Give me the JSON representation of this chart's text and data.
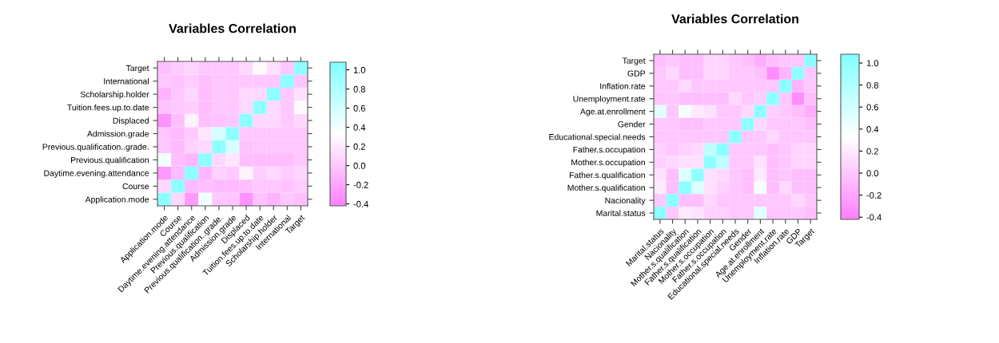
{
  "chart_data": [
    {
      "type": "heatmap",
      "title": "Variables Correlation",
      "categories": [
        "Application.mode",
        "Course",
        "Daytime.evening.attendance",
        "Previous.qualification",
        "Previous.qualification..grade.",
        "Admission.grade",
        "Displaced",
        "Tuition.fees.up.to.date",
        "Scholarship.holder",
        "International",
        "Target"
      ],
      "y_categories": [
        "Target",
        "International",
        "Scholarship.holder",
        "Tuition.fees.up.to.date",
        "Displaced",
        "Admission.grade",
        "Previous.qualification..grade.",
        "Previous.qualification",
        "Daytime.evening.attendance",
        "Course",
        "Application.mode"
      ],
      "cells": [
        [
          -0.05,
          0.03,
          0.08,
          0.0,
          0.0,
          0.0,
          0.1,
          0.3,
          0.15,
          0.0,
          1
        ],
        [
          0.0,
          -0.03,
          0.03,
          -0.06,
          0.0,
          0.0,
          0.0,
          0.0,
          0.0,
          1,
          0.0
        ],
        [
          -0.12,
          0.0,
          0.1,
          -0.06,
          0.0,
          0.0,
          0.1,
          0.1,
          1,
          0.0,
          0.15
        ],
        [
          -0.03,
          0.0,
          0.04,
          -0.06,
          0.0,
          0.0,
          0.1,
          1,
          0.1,
          0.0,
          0.3
        ],
        [
          -0.31,
          -0.05,
          0.25,
          -0.05,
          -0.03,
          0.0,
          1,
          0.1,
          0.1,
          0.0,
          0.1
        ],
        [
          -0.01,
          -0.08,
          0.01,
          0.18,
          0.58,
          1,
          0.0,
          0.0,
          0.0,
          0.0,
          0.0
        ],
        [
          0.0,
          -0.08,
          0.06,
          0.1,
          1,
          0.58,
          -0.03,
          0.0,
          0.0,
          0.0,
          0.0
        ],
        [
          0.42,
          -0.05,
          -0.1,
          1,
          0.1,
          0.18,
          -0.05,
          -0.06,
          -0.06,
          -0.06,
          0.0
        ],
        [
          -0.27,
          -0.07,
          1,
          -0.1,
          0.06,
          0.01,
          0.25,
          0.04,
          0.1,
          0.03,
          0.08
        ],
        [
          0.1,
          1,
          -0.07,
          -0.05,
          -0.08,
          -0.08,
          -0.05,
          0.0,
          0.0,
          -0.03,
          0.03
        ],
        [
          1,
          0.1,
          -0.27,
          0.42,
          0.0,
          -0.01,
          -0.31,
          -0.03,
          -0.12,
          0.0,
          -0.05
        ]
      ],
      "clim": [
        -0.42,
        1.08
      ],
      "cticks": [
        {
          "value": 1.0,
          "label": "1.0"
        },
        {
          "value": 0.8,
          "label": "0.8"
        },
        {
          "value": 0.6,
          "label": "0.6"
        },
        {
          "value": 0.4,
          "label": "0.4"
        },
        {
          "value": 0.2,
          "label": "0.2"
        },
        {
          "value": 0.0,
          "label": "0.0"
        },
        {
          "value": -0.2,
          "label": "-0.2"
        },
        {
          "value": -0.4,
          "label": "-0.4"
        }
      ]
    },
    {
      "type": "heatmap",
      "title": "Variables Correlation",
      "categories": [
        "Marital.status",
        "Nacionality",
        "Mother.s.qualification",
        "Father.s.qualification",
        "Mother.s.occupation",
        "Father.s.occupation",
        "Educational.special.needs",
        "Gender",
        "Age.at.enrollment",
        "Unemployment.rate",
        "Inflation.rate",
        "GDP",
        "Target"
      ],
      "y_categories": [
        "Target",
        "GDP",
        "Inflation.rate",
        "Unemployment.rate",
        "Age.at.enrollment",
        "Gender",
        "Educational.special.needs",
        "Father.s.occupation",
        "Mother.s.occupation",
        "Father.s.qualification",
        "Mother.s.qualification",
        "Nacionality",
        "Marital.status"
      ],
      "cells": [
        [
          -0.05,
          0.0,
          -0.05,
          -0.05,
          0.08,
          0.08,
          0.0,
          -0.05,
          -0.15,
          -0.05,
          0.0,
          0.0,
          1
        ],
        [
          0.0,
          0.1,
          -0.05,
          -0.05,
          0.08,
          0.08,
          0.0,
          0.0,
          -0.05,
          -0.34,
          -0.11,
          1,
          0.0
        ],
        [
          0.0,
          0.0,
          0.1,
          0.0,
          0.0,
          0.0,
          0.0,
          0.0,
          0.0,
          0.0,
          1,
          -0.11,
          0.0
        ],
        [
          -0.02,
          0.0,
          -0.05,
          -0.05,
          -0.05,
          -0.05,
          0.1,
          0.0,
          0.05,
          1,
          0.0,
          -0.34,
          -0.05
        ],
        [
          0.5,
          0.0,
          0.4,
          0.2,
          0.15,
          0.0,
          0.0,
          0.1,
          1,
          0.05,
          0.0,
          -0.05,
          -0.15
        ],
        [
          0.0,
          0.0,
          -0.05,
          -0.05,
          0.0,
          0.0,
          0.0,
          1,
          0.1,
          0.0,
          0.0,
          0.0,
          -0.05
        ],
        [
          0.0,
          0.0,
          0.0,
          0.0,
          0.0,
          0.0,
          1,
          0.0,
          0.0,
          0.1,
          0.0,
          0.0,
          0.0
        ],
        [
          0.05,
          0.0,
          0.05,
          0.1,
          0.72,
          1,
          0.0,
          0.0,
          0.0,
          -0.05,
          0.0,
          0.08,
          0.08
        ],
        [
          0.05,
          0.1,
          0.15,
          0.15,
          1,
          0.72,
          0.0,
          0.0,
          0.15,
          -0.05,
          0.0,
          0.08,
          0.08
        ],
        [
          0.15,
          -0.05,
          0.54,
          1,
          0.15,
          0.1,
          0.0,
          -0.05,
          0.2,
          -0.05,
          0.0,
          -0.05,
          -0.05
        ],
        [
          0.2,
          -0.05,
          1,
          0.54,
          0.15,
          0.05,
          0.0,
          -0.05,
          0.4,
          -0.05,
          0.1,
          -0.05,
          -0.05
        ],
        [
          0.0,
          1,
          -0.05,
          -0.05,
          0.1,
          0.0,
          0.0,
          0.0,
          0.0,
          0.0,
          0.0,
          0.1,
          0.0
        ],
        [
          1,
          0.0,
          0.2,
          0.15,
          0.05,
          0.05,
          0.0,
          0.0,
          0.5,
          -0.02,
          0.0,
          0.0,
          -0.05
        ]
      ],
      "clim": [
        -0.42,
        1.08
      ],
      "cticks": [
        {
          "value": 1.0,
          "label": "1.0"
        },
        {
          "value": 0.8,
          "label": "0.8"
        },
        {
          "value": 0.6,
          "label": "0.6"
        },
        {
          "value": 0.4,
          "label": "0.4"
        },
        {
          "value": 0.2,
          "label": "0.2"
        },
        {
          "value": 0.0,
          "label": "0.0"
        },
        {
          "value": -0.2,
          "label": "-0.2"
        },
        {
          "value": -0.4,
          "label": "-0.4"
        }
      ]
    }
  ]
}
